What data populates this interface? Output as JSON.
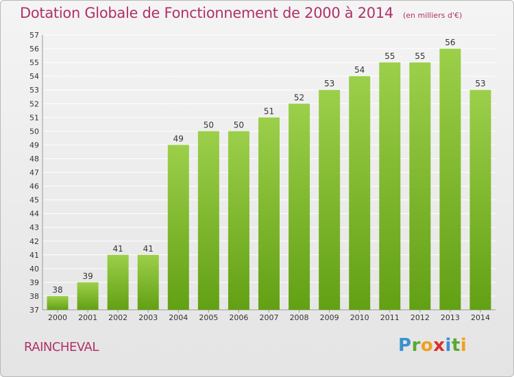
{
  "title": "Dotation Globale de Fonctionnement de 2000 à 2014",
  "unit_note": "(en milliers d'€)",
  "commune": "RAINCHEVAL",
  "logo": {
    "text": "Proxiti",
    "letters": [
      "P",
      "r",
      "o",
      "x",
      "i",
      "t",
      "i"
    ]
  },
  "colors": {
    "title": "#b0306a",
    "bar_light": "#9ccf4a",
    "bar_dark": "#62a014",
    "grid": "#ffffff",
    "axis_text": "#333333"
  },
  "chart_data": {
    "type": "bar",
    "categories": [
      "2000",
      "2001",
      "2002",
      "2003",
      "2004",
      "2005",
      "2006",
      "2007",
      "2008",
      "2009",
      "2010",
      "2011",
      "2012",
      "2013",
      "2014"
    ],
    "values": [
      38,
      39,
      41,
      41,
      49,
      50,
      50,
      51,
      52,
      53,
      54,
      55,
      55,
      56,
      53
    ],
    "ylim": [
      37,
      57
    ],
    "yticks": [
      37,
      38,
      39,
      40,
      41,
      42,
      43,
      44,
      45,
      46,
      47,
      48,
      49,
      50,
      51,
      52,
      53,
      54,
      55,
      56,
      57
    ],
    "grid": true,
    "data_labels": true
  }
}
